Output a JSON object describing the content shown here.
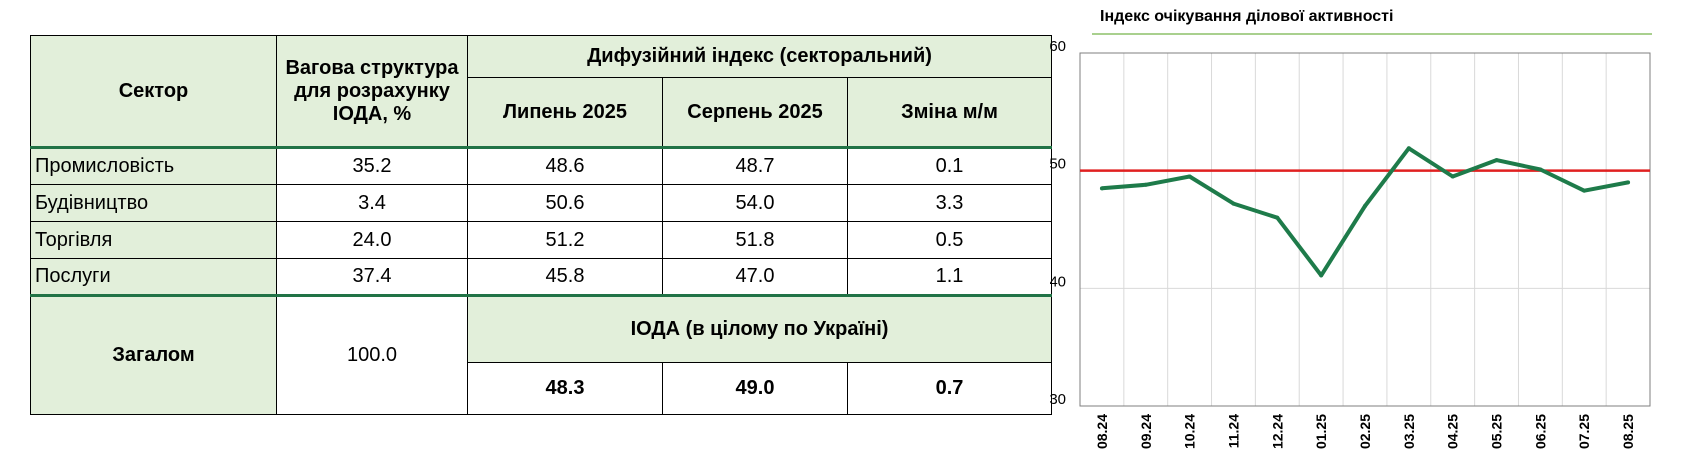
{
  "table": {
    "header": {
      "sector": "Сектор",
      "weight": "Вагова структура для розрахунку ІОДА, %",
      "diffusion": "Дифузійний індекс (секторальний)",
      "july": "Липень 2025",
      "august": "Серпень 2025",
      "change": "Зміна м/м"
    },
    "rows": [
      {
        "sector": "Промисловість",
        "weight": "35.2",
        "july": "48.6",
        "august": "48.7",
        "change": "0.1"
      },
      {
        "sector": "Будівництво",
        "weight": "3.4",
        "july": "50.6",
        "august": "54.0",
        "change": "3.3"
      },
      {
        "sector": "Торгівля",
        "weight": "24.0",
        "july": "51.2",
        "august": "51.8",
        "change": "0.5"
      },
      {
        "sector": "Послуги",
        "weight": "37.4",
        "july": "45.8",
        "august": "47.0",
        "change": "1.1"
      }
    ],
    "total": {
      "label": "Загалом",
      "weight": "100.0",
      "ioda_label": "ІОДА (в цілому по Україні)",
      "july": "48.3",
      "august": "49.0",
      "change": "0.7"
    }
  },
  "chart_data": {
    "type": "line",
    "title": "Індекс очікування ділової активності",
    "categories": [
      "08.24",
      "09.24",
      "10.24",
      "11.24",
      "12.24",
      "01.25",
      "02.25",
      "03.25",
      "04.25",
      "05.25",
      "06.25",
      "07.25",
      "08.25"
    ],
    "series": [
      {
        "values": [
          48.5,
          48.8,
          49.5,
          47.2,
          46.0,
          41.1,
          47.0,
          51.9,
          49.5,
          50.9,
          50.1,
          48.3,
          49.0
        ],
        "color": "#1e7b4a"
      }
    ],
    "reference_line": {
      "value": 50,
      "color": "#e02020"
    },
    "ylim": [
      30,
      60
    ],
    "yticks": [
      "30",
      "40",
      "50",
      "60"
    ],
    "grid": true
  }
}
